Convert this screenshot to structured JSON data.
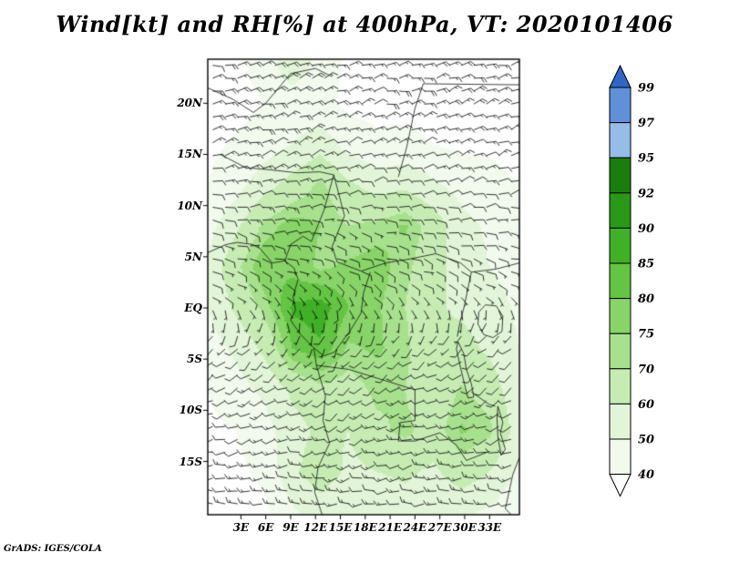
{
  "title": "Wind[kt] and RH[%] at 400hPa, VT: 2020101406",
  "footer": "GrADS: IGES/COLA",
  "chart_data": {
    "type": "heatmap",
    "title": "Wind[kt] and RH[%] at 400hPa, VT: 2020101406",
    "variable_shaded": "Relative Humidity [%]",
    "variable_vector": "Wind barbs [kt]",
    "level": "400hPa",
    "valid_time": "2020101406",
    "lon_range": [
      -1.0,
      36.6
    ],
    "lat_range": [
      -20.2,
      24.3
    ],
    "lon_ticks": [
      3,
      6,
      9,
      12,
      15,
      18,
      21,
      24,
      27,
      30,
      33
    ],
    "xlabel_ticks": [
      "3E",
      "6E",
      "9E",
      "12E",
      "15E",
      "18E",
      "21E",
      "24E",
      "27E",
      "30E",
      "33E"
    ],
    "lat_ticks": [
      20,
      15,
      10,
      5,
      0,
      -5,
      -10,
      -15
    ],
    "ylabel_ticks": [
      "20N",
      "15N",
      "10N",
      "5N",
      "EQ",
      "5S",
      "10S",
      "15S"
    ],
    "colorbar": {
      "levels": [
        40,
        50,
        60,
        70,
        75,
        80,
        85,
        90,
        92,
        95,
        97,
        99
      ],
      "colors": [
        "#f2faee",
        "#e2f5d8",
        "#c6ecb4",
        "#a8e18e",
        "#88d468",
        "#64c444",
        "#40b028",
        "#2a9818",
        "#1a7e0e",
        "#96bce8",
        "#6090d8"
      ],
      "below_color": "#ffffff",
      "above_color": "#3166c4",
      "labels_top_to_bottom": [
        "99",
        "97",
        "95",
        "92",
        "90",
        "85",
        "80",
        "75",
        "70",
        "60",
        "50",
        "40"
      ]
    },
    "rh_grid": {
      "lons": [
        -1,
        2.4,
        5.8,
        9.2,
        12.6,
        16,
        19.4,
        22.8,
        26.2,
        29.6,
        33,
        36.6
      ],
      "lats": [
        24,
        20,
        16,
        12,
        8,
        4,
        0,
        -4,
        -8,
        -12,
        -16,
        -20
      ],
      "values": [
        [
          36,
          38,
          44,
          58,
          46,
          38,
          36,
          35,
          34,
          35,
          37,
          36
        ],
        [
          35,
          37,
          40,
          44,
          42,
          38,
          37,
          38,
          37,
          36,
          37,
          35
        ],
        [
          38,
          41,
          45,
          50,
          56,
          46,
          42,
          42,
          40,
          38,
          39,
          38
        ],
        [
          40,
          46,
          56,
          64,
          72,
          62,
          56,
          58,
          52,
          46,
          42,
          40
        ],
        [
          46,
          58,
          72,
          78,
          75,
          70,
          72,
          76,
          66,
          54,
          48,
          42
        ],
        [
          52,
          68,
          80,
          78,
          74,
          76,
          78,
          72,
          64,
          56,
          50,
          45
        ],
        [
          50,
          62,
          72,
          86,
          88,
          80,
          76,
          70,
          62,
          58,
          55,
          48
        ],
        [
          45,
          52,
          62,
          80,
          84,
          74,
          76,
          72,
          62,
          64,
          58,
          50
        ],
        [
          40,
          46,
          52,
          62,
          68,
          66,
          72,
          70,
          63,
          71,
          66,
          52
        ],
        [
          38,
          40,
          46,
          56,
          62,
          60,
          68,
          72,
          66,
          76,
          72,
          55
        ],
        [
          35,
          38,
          42,
          58,
          66,
          58,
          60,
          62,
          58,
          66,
          60,
          48
        ],
        [
          33,
          35,
          38,
          48,
          55,
          50,
          52,
          55,
          50,
          52,
          48,
          42
        ]
      ]
    },
    "wind_grid": {
      "lons": [
        -1,
        4.4,
        9.8,
        15.2,
        20.6,
        26,
        31.4,
        36.6
      ],
      "lats": [
        24,
        18.5,
        13,
        7.5,
        2,
        -3.5,
        -9,
        -14.5,
        -20
      ],
      "uv": [
        [
          [
            -14,
            -2
          ],
          [
            -16,
            -3
          ],
          [
            -15,
            -5
          ],
          [
            -13,
            -4
          ],
          [
            -14,
            -2
          ],
          [
            -15,
            -3
          ],
          [
            -16,
            -4
          ],
          [
            -14,
            -3
          ]
        ],
        [
          [
            -13,
            -5
          ],
          [
            -15,
            -4
          ],
          [
            -14,
            -6
          ],
          [
            -12,
            -5
          ],
          [
            -13,
            -4
          ],
          [
            -14,
            -5
          ],
          [
            -13,
            -6
          ],
          [
            -12,
            -4
          ]
        ],
        [
          [
            -10,
            -3
          ],
          [
            -12,
            -2
          ],
          [
            -11,
            -4
          ],
          [
            -10,
            -3
          ],
          [
            -9,
            -2
          ],
          [
            -11,
            -3
          ],
          [
            -10,
            -4
          ],
          [
            -9,
            -3
          ]
        ],
        [
          [
            -8,
            2
          ],
          [
            -9,
            1
          ],
          [
            -8,
            0
          ],
          [
            -7,
            2
          ],
          [
            -8,
            1
          ],
          [
            -9,
            2
          ],
          [
            -8,
            0
          ],
          [
            -7,
            1
          ]
        ],
        [
          [
            -6,
            3
          ],
          [
            -7,
            4
          ],
          [
            -5,
            3
          ],
          [
            -6,
            5
          ],
          [
            -7,
            4
          ],
          [
            -6,
            3
          ],
          [
            -5,
            4
          ],
          [
            -6,
            3
          ]
        ],
        [
          [
            4,
            5
          ],
          [
            5,
            6
          ],
          [
            3,
            5
          ],
          [
            4,
            7
          ],
          [
            5,
            6
          ],
          [
            4,
            5
          ],
          [
            6,
            6
          ],
          [
            5,
            4
          ]
        ],
        [
          [
            8,
            4
          ],
          [
            9,
            5
          ],
          [
            10,
            4
          ],
          [
            8,
            6
          ],
          [
            9,
            5
          ],
          [
            10,
            4
          ],
          [
            9,
            6
          ],
          [
            8,
            5
          ]
        ],
        [
          [
            10,
            2
          ],
          [
            11,
            3
          ],
          [
            12,
            2
          ],
          [
            10,
            4
          ],
          [
            11,
            3
          ],
          [
            12,
            2
          ],
          [
            11,
            3
          ],
          [
            10,
            2
          ]
        ],
        [
          [
            12,
            0
          ],
          [
            13,
            1
          ],
          [
            12,
            -1
          ],
          [
            13,
            0
          ],
          [
            12,
            1
          ],
          [
            13,
            0
          ],
          [
            12,
            -1
          ],
          [
            13,
            0
          ]
        ]
      ]
    },
    "barb_grid_spacing_deg": {
      "lon": 1.5,
      "lat": 1.26
    },
    "map_outlines": [
      [
        [
          -1,
          5.4
        ],
        [
          1.2,
          6.2
        ],
        [
          2.6,
          6.4
        ],
        [
          4.4,
          6.2
        ],
        [
          5.3,
          5.8
        ],
        [
          6.8,
          4.4
        ],
        [
          8.3,
          4.6
        ],
        [
          9.4,
          3.9
        ],
        [
          9.9,
          2.8
        ],
        [
          9.3,
          1.1
        ],
        [
          9.6,
          -0.2
        ],
        [
          9.0,
          -1.2
        ],
        [
          10.2,
          -2.6
        ],
        [
          11.8,
          -3.9
        ],
        [
          12.1,
          -5.6
        ],
        [
          13.2,
          -8.6
        ],
        [
          12.9,
          -11.0
        ],
        [
          13.7,
          -13.2
        ],
        [
          12.3,
          -15.6
        ],
        [
          11.9,
          -18.0
        ],
        [
          12.8,
          -20.2
        ]
      ],
      [
        [
          -1,
          21.5
        ],
        [
          2.0,
          20.4
        ],
        [
          4.5,
          19.1
        ],
        [
          6.0,
          20.0
        ],
        [
          9.0,
          22.9
        ],
        [
          12.0,
          23.4
        ],
        [
          14.0,
          22.6
        ]
      ],
      [
        [
          0.5,
          15.0
        ],
        [
          3.6,
          13.7
        ],
        [
          6.5,
          13.5
        ],
        [
          9.8,
          13.2
        ],
        [
          12.5,
          13.3
        ],
        [
          14.2,
          13.0
        ]
      ],
      [
        [
          8.3,
          4.6
        ],
        [
          9.0,
          6.2
        ],
        [
          10.5,
          7.0
        ],
        [
          11.5,
          6.5
        ],
        [
          13.0,
          9.5
        ],
        [
          14.2,
          13.0
        ],
        [
          15.5,
          9.0
        ],
        [
          14.0,
          6.0
        ],
        [
          14.6,
          4.5
        ]
      ],
      [
        [
          14.6,
          4.5
        ],
        [
          17.5,
          3.6
        ],
        [
          20.5,
          4.4
        ],
        [
          23.5,
          4.8
        ],
        [
          26.5,
          5.3
        ],
        [
          29.5,
          4.4
        ],
        [
          30.8,
          3.5
        ],
        [
          33.8,
          3.8
        ],
        [
          36.6,
          4.4
        ]
      ],
      [
        [
          22.0,
          12.8
        ],
        [
          23.0,
          15.7
        ],
        [
          24.0,
          19.5
        ],
        [
          25.0,
          21.9
        ]
      ],
      [
        [
          25.0,
          21.9
        ],
        [
          36.6,
          21.8
        ]
      ],
      [
        [
          11.8,
          -3.9
        ],
        [
          13.0,
          -4.7
        ],
        [
          14.3,
          -4.3
        ],
        [
          16.2,
          -2.2
        ],
        [
          17.5,
          -0.5
        ],
        [
          17.8,
          1.5
        ],
        [
          18.6,
          3.5
        ]
      ],
      [
        [
          12.1,
          -5.6
        ],
        [
          16.0,
          -6.0
        ],
        [
          20.0,
          -7.0
        ],
        [
          24.0,
          -8.0
        ],
        [
          24.0,
          -11.0
        ],
        [
          22.2,
          -11.2
        ],
        [
          22.0,
          -13.0
        ],
        [
          24.0,
          -13.0
        ],
        [
          27.0,
          -12.2
        ],
        [
          29.0,
          -13.4
        ],
        [
          30.2,
          -14.9
        ],
        [
          33.0,
          -14.0
        ]
      ],
      [
        [
          30.8,
          -8.2
        ],
        [
          32.9,
          -9.4
        ],
        [
          33.7,
          -9.6
        ]
      ],
      [
        [
          30.8,
          3.5
        ],
        [
          29.9,
          0.0
        ],
        [
          29.4,
          -1.5
        ],
        [
          29.1,
          -2.8
        ]
      ],
      [
        [
          29.2,
          -3.3
        ],
        [
          29.9,
          -4.5
        ],
        [
          30.2,
          -6.0
        ],
        [
          30.8,
          -7.4
        ],
        [
          31.1,
          -8.7
        ],
        [
          30.4,
          -8.8
        ],
        [
          29.9,
          -7.2
        ],
        [
          29.4,
          -5.5
        ],
        [
          29.0,
          -4.0
        ],
        [
          29.2,
          -3.3
        ]
      ],
      [
        [
          31.7,
          -0.4
        ],
        [
          32.5,
          0.3
        ],
        [
          33.8,
          0.2
        ],
        [
          34.6,
          -0.8
        ],
        [
          34.5,
          -2.3
        ],
        [
          33.4,
          -2.9
        ],
        [
          32.3,
          -2.6
        ],
        [
          31.6,
          -1.6
        ],
        [
          31.7,
          -0.4
        ]
      ],
      [
        [
          34.0,
          -9.6
        ],
        [
          34.6,
          -11.2
        ],
        [
          34.3,
          -12.2
        ],
        [
          34.9,
          -13.8
        ],
        [
          34.4,
          -14.4
        ],
        [
          34.0,
          -12.6
        ],
        [
          33.9,
          -10.8
        ],
        [
          34.0,
          -9.6
        ]
      ],
      [
        [
          36.6,
          -14.6
        ],
        [
          35.8,
          -16.3
        ],
        [
          34.9,
          -19.6
        ],
        [
          35.6,
          -20.2
        ]
      ]
    ]
  }
}
